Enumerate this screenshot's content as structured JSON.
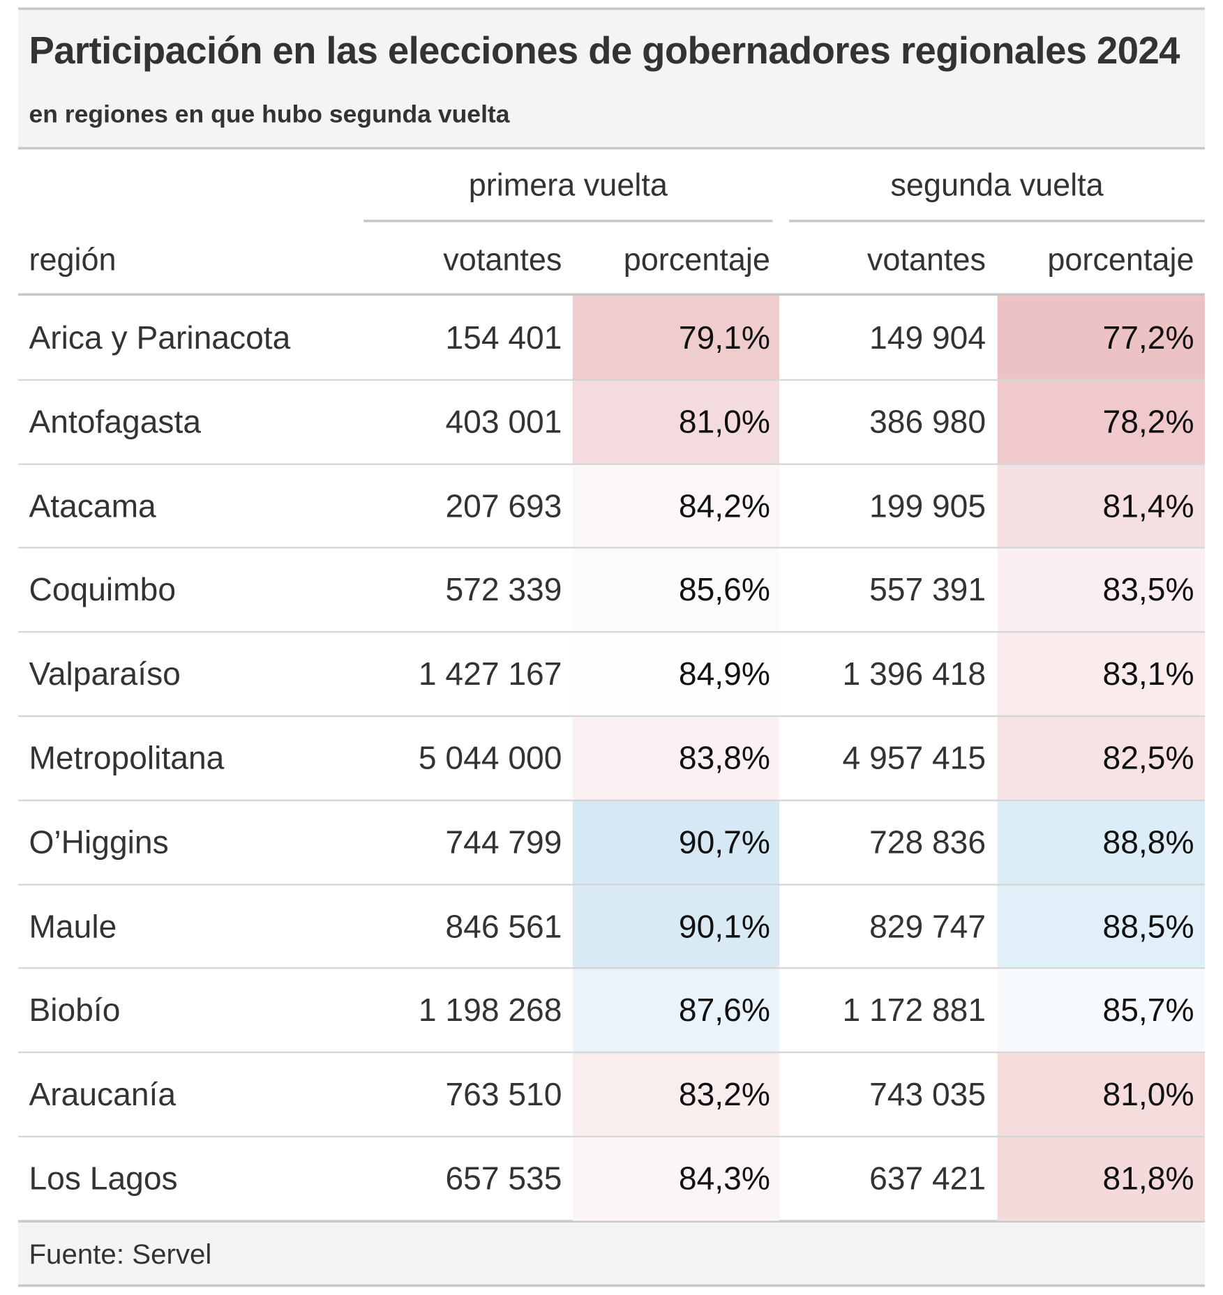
{
  "header": {
    "title": "Participación en las elecciones de gobernadores regionales 2024",
    "subtitle": "en regiones en que hubo segunda vuelta"
  },
  "table": {
    "spanners": [
      "primera vuelta",
      "segunda vuelta"
    ],
    "columns": [
      "región",
      "votantes",
      "porcentaje",
      "votantes",
      "porcentaje"
    ],
    "rows": [
      [
        "Arica y Parinacota",
        "154 401",
        "79,1%",
        "149 904",
        "77,2%"
      ],
      [
        "Antofagasta",
        "403 001",
        "81,0%",
        "386 980",
        "78,2%"
      ],
      [
        "Atacama",
        "207 693",
        "84,2%",
        "199 905",
        "81,4%"
      ],
      [
        "Coquimbo",
        "572 339",
        "85,6%",
        "557 391",
        "83,5%"
      ],
      [
        "Valparaíso",
        "1 427 167",
        "84,9%",
        "1 396 418",
        "83,1%"
      ],
      [
        "Metropolitana",
        "5 044 000",
        "83,8%",
        "4 957 415",
        "82,5%"
      ],
      [
        "O’Higgins",
        "744 799",
        "90,7%",
        "728 836",
        "88,8%"
      ],
      [
        "Maule",
        "846 561",
        "90,1%",
        "829 747",
        "88,5%"
      ],
      [
        "Biobío",
        "1 198 268",
        "87,6%",
        "1 172 881",
        "85,7%"
      ],
      [
        "Araucanía",
        "763 510",
        "83,2%",
        "743 035",
        "81,0%"
      ],
      [
        "Los Lagos",
        "657 535",
        "84,3%",
        "637 421",
        "81,8%"
      ]
    ],
    "percent_fills": [
      [
        "#efcdcf",
        "#edc2c4"
      ],
      [
        "#f4dcde",
        "#efc9cb"
      ],
      [
        "#fcf7f7",
        "#f6dfe0"
      ],
      [
        "#f9fbfd",
        "#fbeef0"
      ],
      [
        "#fefdfd",
        "#faebec"
      ],
      [
        "#fbf1f2",
        "#f7e3e4"
      ],
      [
        "#d5e8f4",
        "#ddedf7"
      ],
      [
        "#d9eaf5",
        "#e1eff8"
      ],
      [
        "#eaf3fa",
        "#f6fafd"
      ],
      [
        "#faeded",
        "#f5dcdd"
      ],
      [
        "#fcf5f5",
        "#f5dadb"
      ]
    ]
  },
  "footer": {
    "source": "Fuente: Servel"
  }
}
